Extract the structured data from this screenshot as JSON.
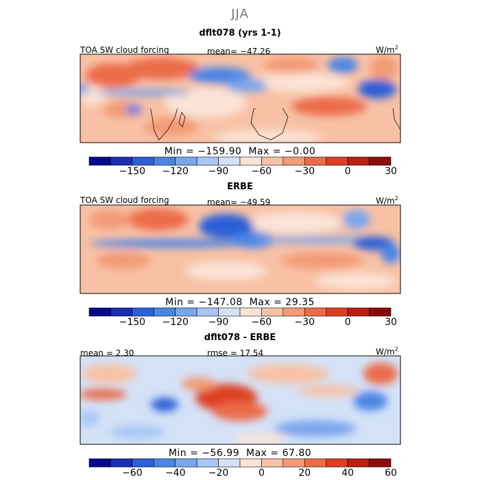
{
  "season": "JJA",
  "panels": [
    {
      "id": "model",
      "title": "dflt078 (yrs 1-1)",
      "left_label": "TOA SW cloud forcing",
      "center_label": "mean= −47.26",
      "units_base": "W/m",
      "units_exp": "2",
      "min_label": "Min = −159.90",
      "max_label": "Max = −0.00",
      "colorbar_ticks": [
        "−150",
        "−120",
        "−90",
        "−60",
        "−30",
        "0",
        "30"
      ]
    },
    {
      "id": "obs",
      "title": "ERBE",
      "left_label": "TOA SW cloud forcing",
      "center_label": "mean= −49.59",
      "units_base": "W/m",
      "units_exp": "2",
      "min_label": "Min = −147.08",
      "max_label": "Max = 29.35",
      "colorbar_ticks": [
        "−150",
        "−120",
        "−90",
        "−60",
        "−30",
        "0",
        "30"
      ]
    },
    {
      "id": "diff",
      "title": "dflt078 - ERBE",
      "left_label": "mean = 2.30",
      "center_label": "rmse = 17.54",
      "units_base": "W/m",
      "units_exp": "2",
      "min_label": "Min = −56.99",
      "max_label": "Max = 67.80",
      "colorbar_ticks": [
        "−60",
        "−40",
        "−20",
        "0",
        "20",
        "40",
        "60"
      ]
    }
  ],
  "palettes": {
    "forcing": [
      "#08088c",
      "#1a2fb4",
      "#2c5fd8",
      "#4a85e6",
      "#7aa6ee",
      "#a9c6f4",
      "#d4e2f7",
      "#fbe3d6",
      "#f8c1a5",
      "#f39a76",
      "#ec6c48",
      "#de3f22",
      "#bb1f12",
      "#8c0a0a"
    ],
    "difference": [
      "#08088c",
      "#1a2fb4",
      "#2c5fd8",
      "#4a85e6",
      "#7aa6ee",
      "#a9c6f4",
      "#d4e2f7",
      "#fbe3d6",
      "#f8c1a5",
      "#f39a76",
      "#ec6c48",
      "#de3f22",
      "#bb1f12",
      "#8c0a0a"
    ]
  },
  "chart_data": [
    {
      "type": "heatmap",
      "title": "dflt078 (yrs 1-1)",
      "variable": "TOA SW cloud forcing",
      "units": "W/m2",
      "mean": -47.26,
      "min": -159.9,
      "max": -0.0,
      "colorbar_levels": [
        -180,
        -165,
        -150,
        -135,
        -120,
        -105,
        -90,
        -75,
        -60,
        -45,
        -30,
        -15,
        0,
        15,
        30,
        45
      ],
      "colorbar_ticks": [
        -150,
        -120,
        -90,
        -60,
        -30,
        0,
        30
      ],
      "map_region": "tropics, 0E to 360E, approx 40S to 40N"
    },
    {
      "type": "heatmap",
      "title": "ERBE",
      "variable": "TOA SW cloud forcing",
      "units": "W/m2",
      "mean": -49.59,
      "min": -147.08,
      "max": 29.35,
      "colorbar_levels": [
        -180,
        -165,
        -150,
        -135,
        -120,
        -105,
        -90,
        -75,
        -60,
        -45,
        -30,
        -15,
        0,
        15,
        30,
        45
      ],
      "colorbar_ticks": [
        -150,
        -120,
        -90,
        -60,
        -30,
        0,
        30
      ],
      "map_region": "tropics, 0E to 360E, approx 40S to 40N"
    },
    {
      "type": "heatmap",
      "title": "dflt078 - ERBE",
      "variable": "difference",
      "units": "W/m2",
      "mean": 2.3,
      "rmse": 17.54,
      "min": -56.99,
      "max": 67.8,
      "colorbar_levels": [
        -80,
        -70,
        -60,
        -50,
        -40,
        -30,
        -20,
        -10,
        0,
        10,
        20,
        30,
        40,
        50,
        60,
        70
      ],
      "colorbar_ticks": [
        -60,
        -40,
        -20,
        0,
        20,
        40,
        60
      ],
      "map_region": "tropics, 0E to 360E, approx 40S to 40N"
    }
  ]
}
